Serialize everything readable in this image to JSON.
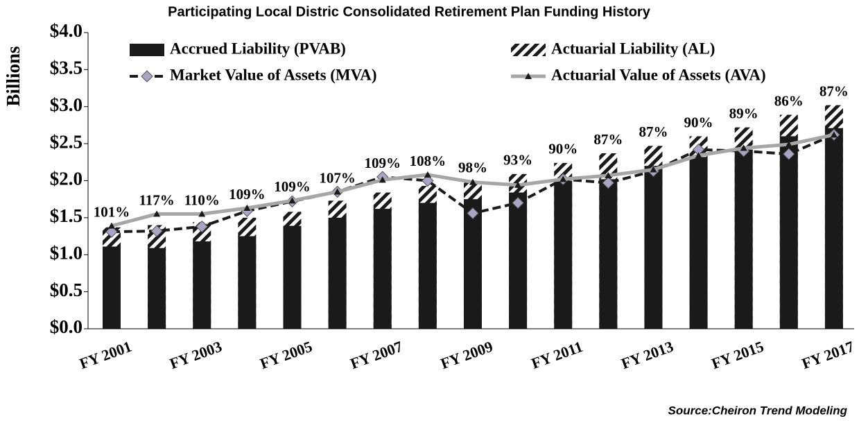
{
  "chart_data": {
    "type": "bar",
    "title": "Participating Local Distric Consolidated Retirement Plan Funding History",
    "y_label": "Billions",
    "source": "Source:Cheiron Trend Modeling",
    "categories": [
      "FY 2001",
      null,
      "FY 2003",
      null,
      "FY 2005",
      null,
      "FY 2007",
      null,
      "FY 2009",
      null,
      "FY 2011",
      null,
      "FY 2013",
      null,
      "FY 2015",
      null,
      "FY 2017"
    ],
    "ylim": [
      0,
      4
    ],
    "yticks": [
      {
        "value": 0,
        "label": "$0.0"
      },
      {
        "value": 0.5,
        "label": "$0.5"
      },
      {
        "value": 1,
        "label": "$1.0"
      },
      {
        "value": 1.5,
        "label": "$1.5"
      },
      {
        "value": 2,
        "label": "$2.0"
      },
      {
        "value": 2.5,
        "label": "$2.5"
      },
      {
        "value": 3,
        "label": "$3.0"
      },
      {
        "value": 3.5,
        "label": "$3.5"
      },
      {
        "value": 4,
        "label": "$4.0"
      }
    ],
    "series": [
      {
        "name": "Accrued Liability (PVAB)",
        "type": "bar",
        "color": "#1a1a1a",
        "values": [
          1.11,
          1.09,
          1.18,
          1.25,
          1.39,
          1.5,
          1.62,
          1.7,
          1.75,
          1.84,
          2.0,
          2.02,
          2.2,
          2.32,
          2.42,
          2.6,
          2.71
        ]
      },
      {
        "name": "Actuarial Liability (AL)",
        "type": "bar",
        "pattern": "hatch",
        "color": "#1a1a1a",
        "values": [
          1.37,
          1.4,
          1.44,
          1.5,
          1.58,
          1.73,
          1.84,
          1.93,
          1.99,
          2.09,
          2.24,
          2.37,
          2.47,
          2.6,
          2.72,
          2.89,
          3.02
        ]
      },
      {
        "name": "Market Value of Assets (MVA)",
        "type": "line",
        "dash": true,
        "marker": "diamond",
        "color": "#1a1a1a",
        "marker_color": "#a9a3c4",
        "values": [
          1.31,
          1.32,
          1.38,
          1.59,
          1.72,
          1.85,
          2.05,
          2.0,
          1.56,
          1.7,
          2.02,
          1.97,
          2.13,
          2.42,
          2.4,
          2.36,
          2.62
        ]
      },
      {
        "name": "Actuarial Value of Assets (AVA)",
        "type": "line",
        "marker": "triangle",
        "color": "#a6a6a6",
        "marker_color": "#1a1a1a",
        "values": [
          1.39,
          1.55,
          1.55,
          1.63,
          1.73,
          1.85,
          2.01,
          2.08,
          1.98,
          1.94,
          2.02,
          2.07,
          2.15,
          2.34,
          2.44,
          2.49,
          2.62
        ]
      }
    ],
    "funded_ratio": {
      "values": [
        101,
        117,
        110,
        109,
        109,
        107,
        109,
        108,
        98,
        93,
        90,
        87,
        87,
        90,
        89,
        86,
        87
      ],
      "value_labels": [
        "101%",
        "117%",
        "110%",
        "109%",
        "109%",
        "107%",
        "109%",
        "108%",
        "98%",
        "93%",
        "90%",
        "87%",
        "87%",
        "90%",
        "89%",
        "86%",
        "87%"
      ]
    }
  }
}
